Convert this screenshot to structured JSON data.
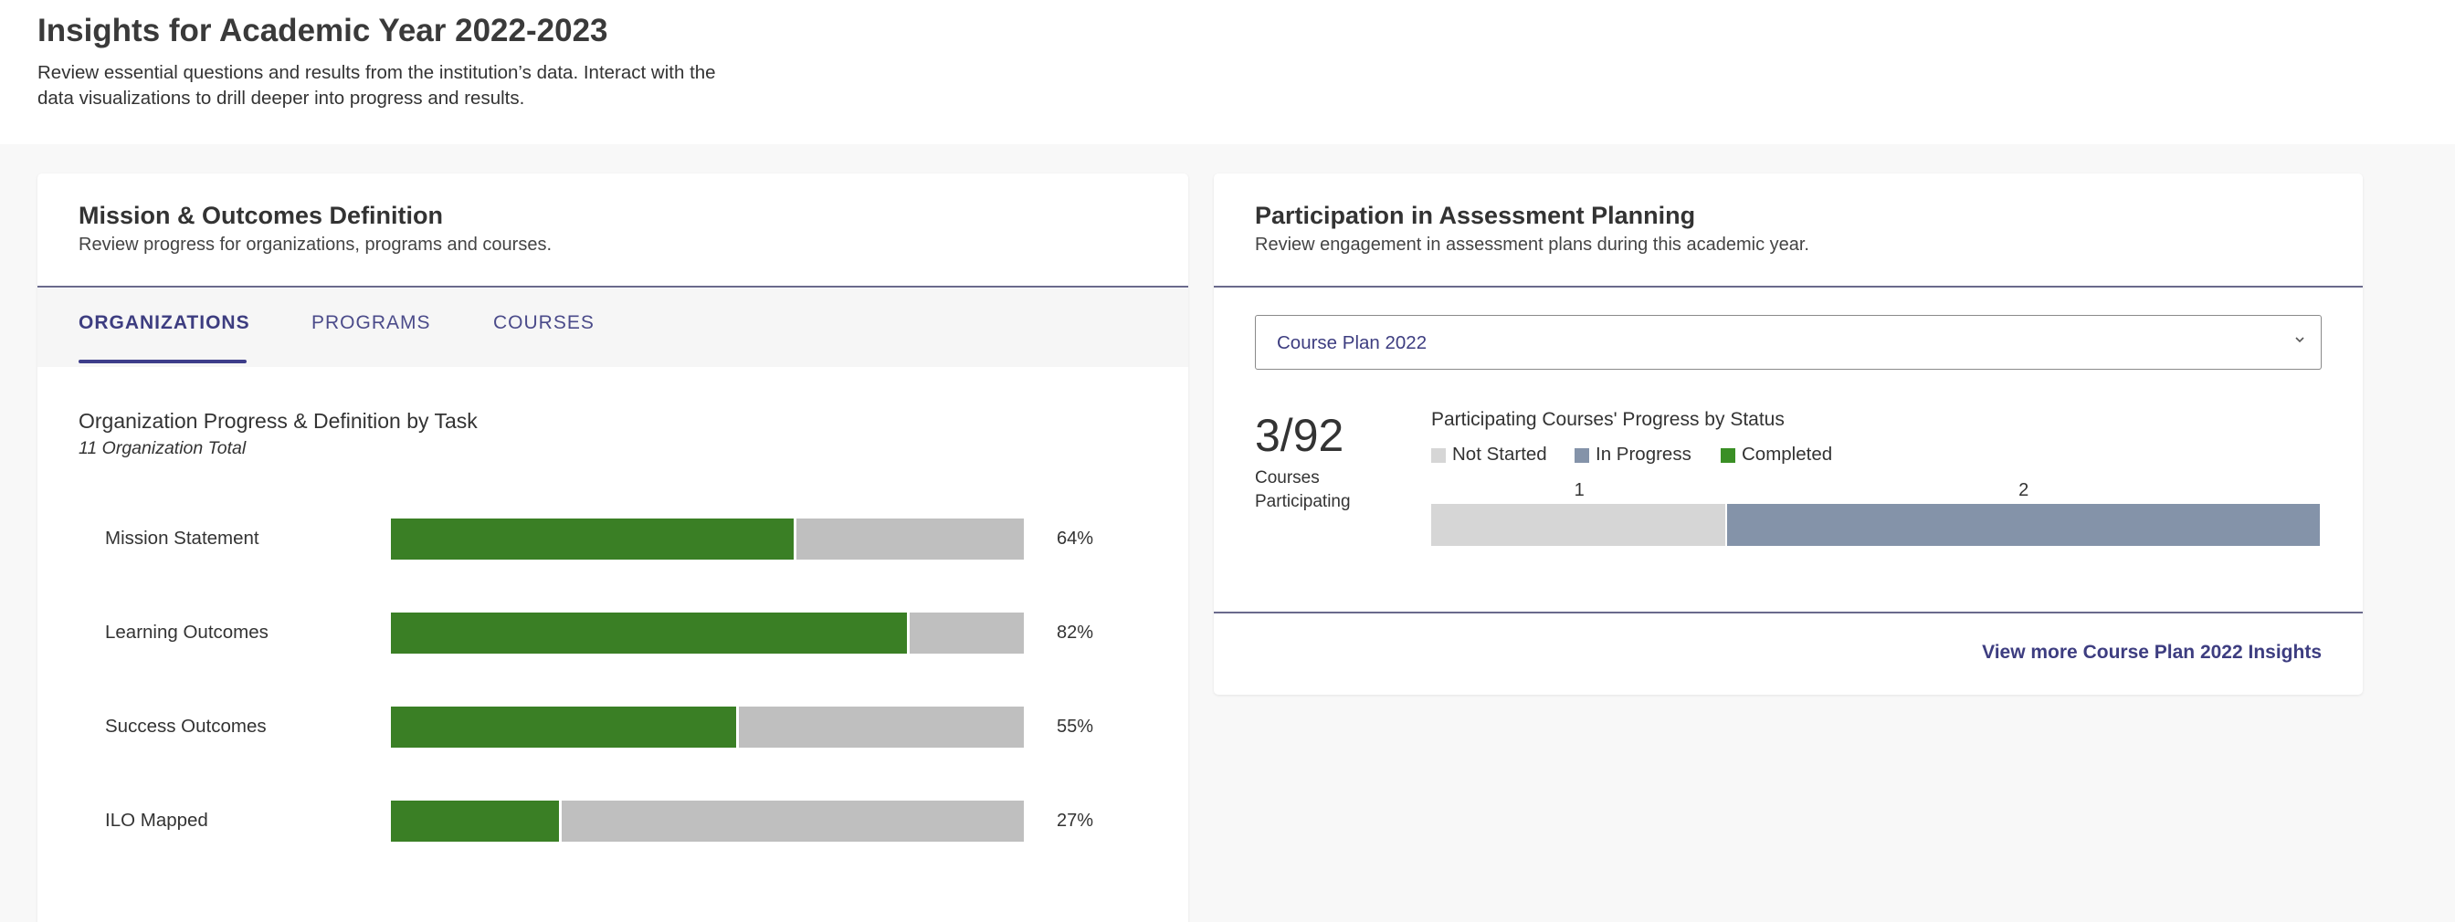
{
  "page": {
    "title": "Insights for Academic Year 2022-2023",
    "description": "Review essential questions and results from the institution’s data. Interact with the data visualizations to drill deeper into progress and results."
  },
  "mission_card": {
    "title": "Mission & Outcomes Definition",
    "subtitle": "Review progress for organizations, programs and courses.",
    "tabs": [
      {
        "label": "ORGANIZATIONS",
        "active": true
      },
      {
        "label": "PROGRAMS",
        "active": false
      },
      {
        "label": "COURSES",
        "active": false
      }
    ],
    "chart_title": "Organization Progress & Definition by Task",
    "chart_subtitle": "11 Organization Total"
  },
  "participation_card": {
    "title": "Participation in Assessment Planning",
    "subtitle": "Review engagement in assessment plans during this academic year.",
    "select_value": "Course Plan 2022",
    "stat_value": "3/92",
    "stat_label": "Courses Participating",
    "status_title": "Participating Courses' Progress by Status",
    "footer_link": "View more Course Plan 2022 Insights"
  },
  "colors": {
    "completed": "#3a7f25",
    "not_started": "#d6d6d6",
    "in_progress": "#8493a9",
    "remaining": "#bfbfbf",
    "accent": "#3d3d80"
  },
  "chart_data": [
    {
      "type": "bar",
      "orientation": "horizontal",
      "stacked": true,
      "title": "Organization Progress & Definition by Task",
      "subtitle": "11 Organization Total",
      "categories": [
        "Mission Statement",
        "Learning Outcomes",
        "Success Outcomes",
        "ILO Mapped"
      ],
      "values": [
        64,
        82,
        55,
        27
      ],
      "value_labels": [
        "64%",
        "82%",
        "55%",
        "27%"
      ],
      "ylim": [
        0,
        100
      ]
    },
    {
      "type": "bar",
      "orientation": "horizontal",
      "stacked": true,
      "title": "Participating Courses' Progress by Status",
      "series": [
        {
          "name": "Not Started",
          "values": [
            1
          ],
          "label": "1"
        },
        {
          "name": "In Progress",
          "values": [
            2
          ],
          "label": "2"
        },
        {
          "name": "Completed",
          "values": [
            0
          ],
          "label": ""
        }
      ],
      "legend": "top-left"
    }
  ]
}
